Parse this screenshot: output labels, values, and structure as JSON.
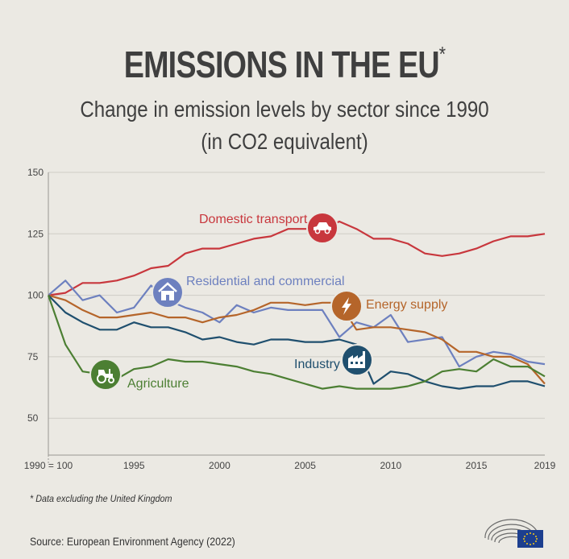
{
  "page": {
    "title": "EMISSIONS IN THE EU",
    "title_mark": "*",
    "subtitle_line1": "Change in emission levels by sector since 1990",
    "subtitle_line2": "(in CO2 equivalent)",
    "footnote": "* Data excluding the United Kingdom",
    "source": "Source: European Environment Agency (2022)"
  },
  "chart_data": {
    "type": "line",
    "title": "EMISSIONS IN THE EU",
    "subtitle": "Change in emission levels by sector since 1990 (in CO2 equivalent)",
    "x": [
      1990,
      1991,
      1992,
      1993,
      1994,
      1995,
      1996,
      1997,
      1998,
      1999,
      2000,
      2001,
      2002,
      2003,
      2004,
      2005,
      2006,
      2007,
      2008,
      2009,
      2010,
      2011,
      2012,
      2013,
      2014,
      2015,
      2016,
      2017,
      2018,
      2019
    ],
    "xlim": [
      1990,
      2019
    ],
    "ylim": [
      35,
      150
    ],
    "y_ticks": [
      50,
      75,
      100,
      125,
      150
    ],
    "x_ticks": [
      {
        "value": 1990,
        "label": "1990 = 100"
      },
      {
        "value": 1995,
        "label": "1995"
      },
      {
        "value": 2000,
        "label": "2000"
      },
      {
        "value": 2005,
        "label": "2005"
      },
      {
        "value": 2010,
        "label": "2010"
      },
      {
        "value": 2015,
        "label": "2015"
      },
      {
        "value": 2019,
        "label": "2019"
      }
    ],
    "grid": true,
    "series": [
      {
        "name": "Domestic transport",
        "icon": "car-icon",
        "color": "#c8373d",
        "values": [
          100,
          101,
          105,
          105,
          106,
          108,
          111,
          112,
          117,
          119,
          119,
          121,
          123,
          124,
          127,
          127,
          127,
          130,
          127,
          123,
          123,
          121,
          117,
          116,
          117,
          119,
          122,
          124,
          124,
          125
        ]
      },
      {
        "name": "Residential and commercial",
        "icon": "house-icon",
        "color": "#6d80bf",
        "values": [
          100,
          106,
          98,
          100,
          93,
          95,
          104,
          98,
          95,
          93,
          89,
          96,
          93,
          95,
          94,
          94,
          94,
          83,
          89,
          87,
          92,
          81,
          82,
          83,
          71,
          75,
          77,
          76,
          73,
          72
        ]
      },
      {
        "name": "Energy supply",
        "icon": "lightning-icon",
        "color": "#b5652a",
        "values": [
          100,
          98,
          94,
          91,
          91,
          92,
          93,
          91,
          91,
          89,
          91,
          92,
          94,
          97,
          97,
          96,
          97,
          97,
          86,
          87,
          87,
          86,
          85,
          82,
          77,
          77,
          75,
          75,
          72,
          64
        ]
      },
      {
        "name": "Industry",
        "icon": "factory-icon",
        "color": "#1f4f6e",
        "values": [
          100,
          93,
          89,
          86,
          86,
          89,
          87,
          87,
          85,
          82,
          83,
          81,
          80,
          82,
          82,
          81,
          81,
          82,
          80,
          64,
          69,
          68,
          65,
          63,
          62,
          63,
          63,
          65,
          65,
          63
        ]
      },
      {
        "name": "Agriculture",
        "icon": "tractor-icon",
        "color": "#4c7f33",
        "values": [
          100,
          80,
          69,
          68,
          66,
          70,
          71,
          74,
          73,
          73,
          72,
          71,
          69,
          68,
          66,
          64,
          62,
          63,
          62,
          62,
          62,
          63,
          65,
          69,
          70,
          69,
          74,
          71,
          71,
          67
        ]
      }
    ]
  }
}
